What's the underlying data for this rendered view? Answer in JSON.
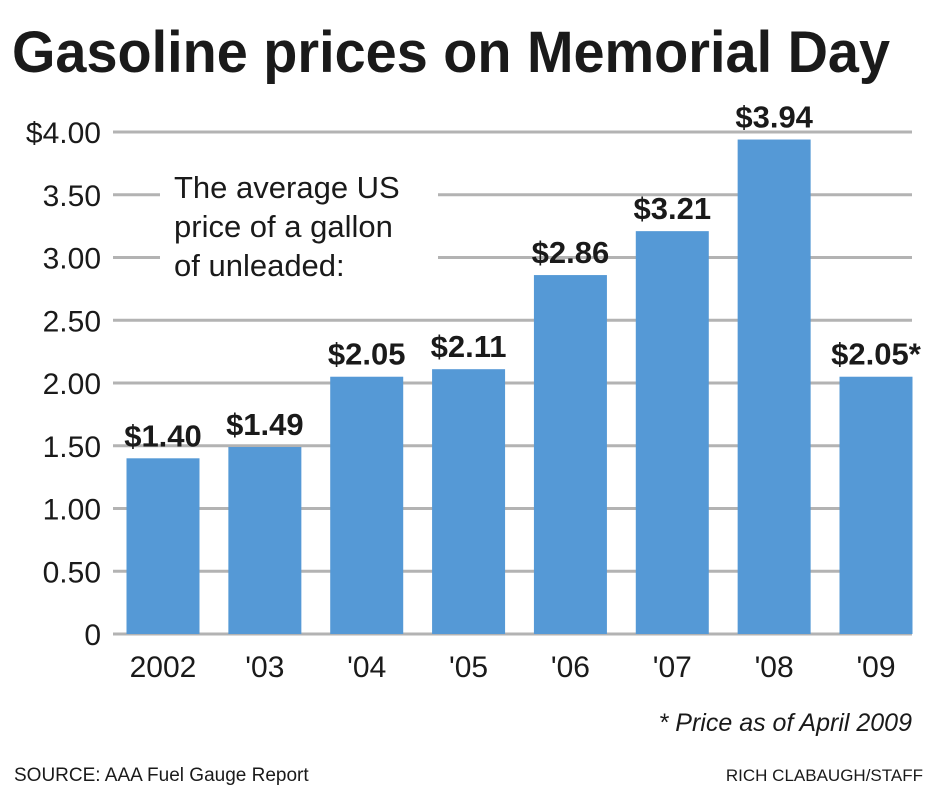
{
  "chart_data": {
    "type": "bar",
    "title": "Gasoline prices on Memorial Day",
    "annotation": [
      "The average US",
      "price of a gallon",
      "of unleaded:"
    ],
    "categories": [
      "2002",
      "'03",
      "'04",
      "'05",
      "'06",
      "'07",
      "'08",
      "'09"
    ],
    "values": [
      1.4,
      1.49,
      2.05,
      2.11,
      2.86,
      3.21,
      3.94,
      2.05
    ],
    "data_labels": [
      "$1.40",
      "$1.49",
      "$2.05",
      "$2.11",
      "$2.86",
      "$3.21",
      "$3.94",
      "$2.05*"
    ],
    "yticks": [
      0,
      0.5,
      1.0,
      1.5,
      2.0,
      2.5,
      3.0,
      3.5,
      4.0
    ],
    "ytick_labels": [
      "0",
      "0.50",
      "1.00",
      "1.50",
      "2.00",
      "2.50",
      "3.00",
      "3.50",
      "$4.00"
    ],
    "ylim": [
      0,
      4
    ],
    "xlabel": "",
    "ylabel": "",
    "grid": true,
    "footnote": "* Price as of April 2009",
    "source": "SOURCE: AAA Fuel Gauge Report",
    "credit": "RICH CLABAUGH/STAFF",
    "colors": {
      "bar": "#5599d6",
      "grid": "#b3b3b3",
      "text": "#1a1a1a"
    }
  }
}
